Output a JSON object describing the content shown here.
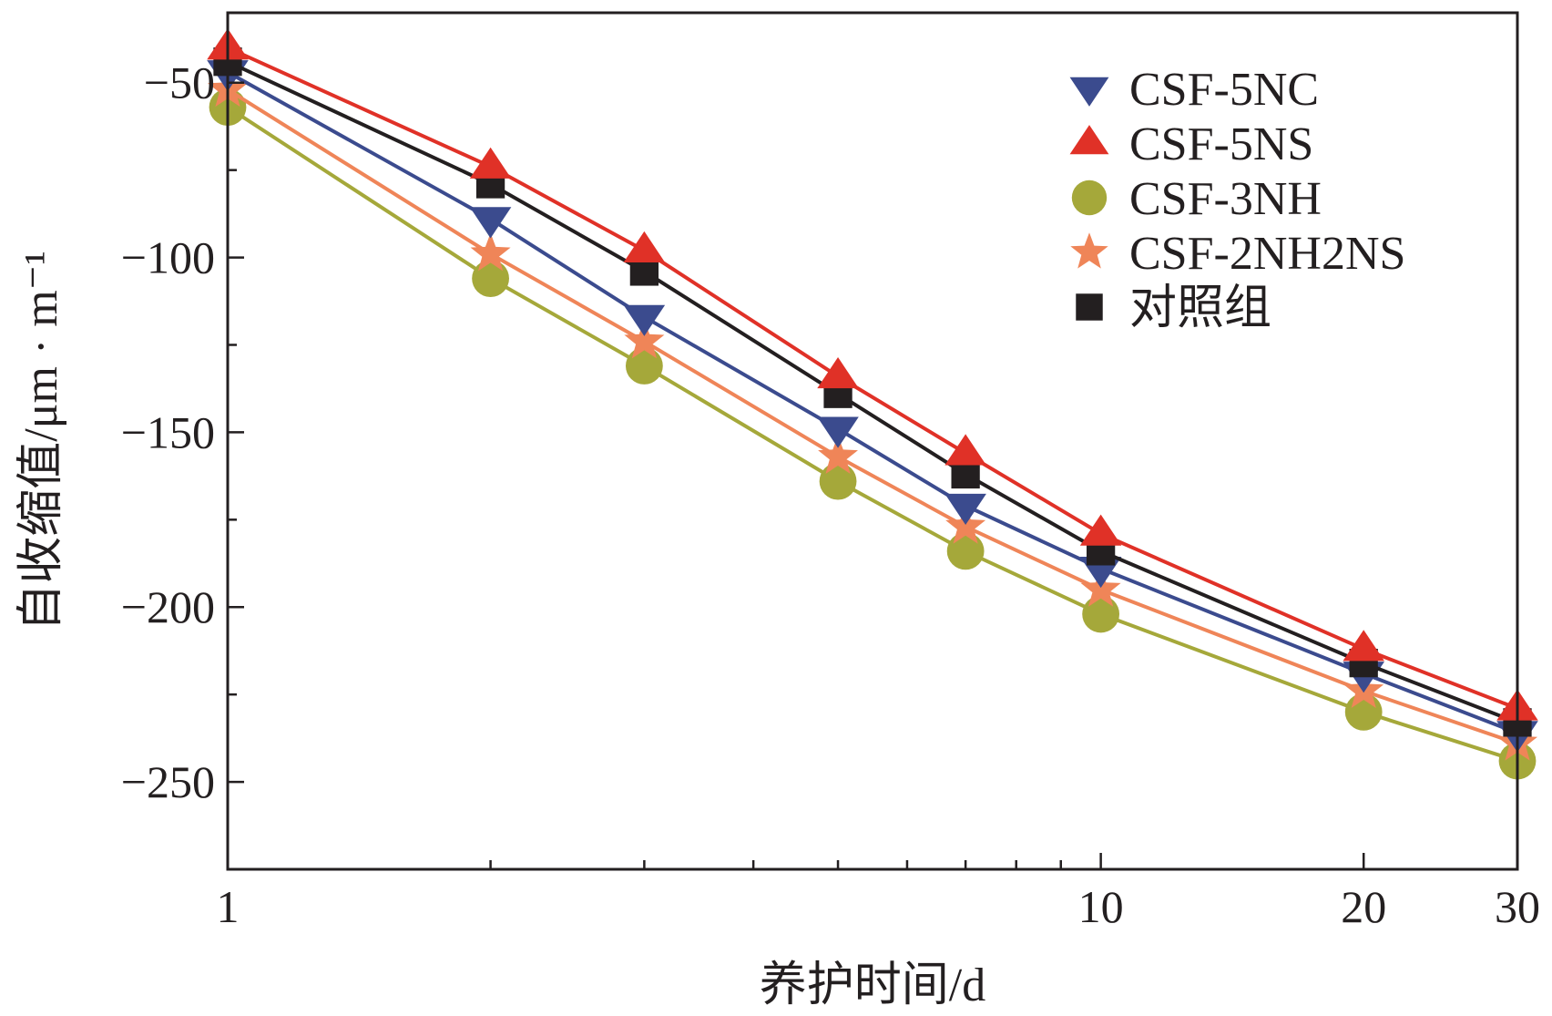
{
  "chart_data": {
    "type": "line",
    "title": "",
    "xlabel": "养护时间/d",
    "ylabel": "自收缩值/μm · m⁻¹",
    "xscale": "log",
    "xlim": [
      1,
      30
    ],
    "ylim": [
      -275,
      -30
    ],
    "x": [
      1,
      2,
      3,
      5,
      7,
      10,
      20,
      30
    ],
    "x_ticks": [
      {
        "value": 1,
        "label": "1"
      },
      {
        "value": 10,
        "label": "10"
      },
      {
        "value": 20,
        "label": "20"
      },
      {
        "value": 30,
        "label": "30"
      }
    ],
    "y_ticks": [
      {
        "value": -50,
        "label": "−50"
      },
      {
        "value": -100,
        "label": "−100"
      },
      {
        "value": -150,
        "label": "−150"
      },
      {
        "value": -200,
        "label": "−200"
      },
      {
        "value": -250,
        "label": "−250"
      }
    ],
    "legend_position": "top-right",
    "series": [
      {
        "name": "CSF-5NC",
        "marker": "triangle-down",
        "color": "#3b4b8e",
        "values": [
          -47,
          -89,
          -117,
          -149,
          -171,
          -189,
          -219,
          -236
        ]
      },
      {
        "name": "CSF-5NS",
        "marker": "triangle-up",
        "color": "#e03127",
        "values": [
          -40,
          -74,
          -98,
          -134,
          -156,
          -179,
          -212,
          -229
        ]
      },
      {
        "name": "CSF-3NH",
        "marker": "circle",
        "color": "#a5a83a",
        "values": [
          -57,
          -106,
          -131,
          -164,
          -184,
          -202,
          -230,
          -244
        ]
      },
      {
        "name": "CSF-2NH2NS",
        "marker": "star",
        "color": "#ef8558",
        "values": [
          -52,
          -99,
          -124,
          -157,
          -177,
          -195,
          -224,
          -239
        ]
      },
      {
        "name": "对照组",
        "marker": "square",
        "color": "#231f20",
        "values": [
          -44,
          -79,
          -104,
          -139,
          -162,
          -184,
          -216,
          -233
        ]
      }
    ]
  }
}
